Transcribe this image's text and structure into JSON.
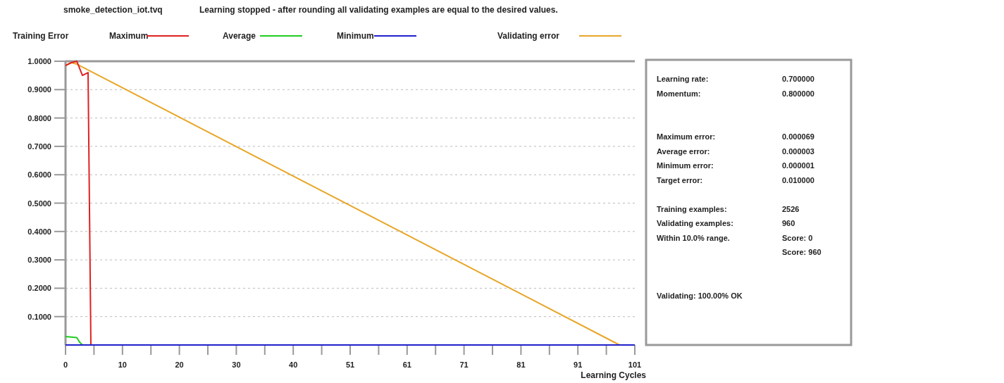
{
  "chart_data": {
    "type": "line",
    "title": "smoke_detection_iot.tvq",
    "subtitle": "Learning stopped - after rounding all validating examples are equal to the desired values.",
    "xlabel": "Learning Cycles",
    "legend_title": "Training Error",
    "legend": "top",
    "grid": "y",
    "marker": "none",
    "line_style": "solid",
    "xlim": [
      0,
      101
    ],
    "xticks": [
      0,
      {
        "value": 5.05,
        "label": null
      },
      {
        "value": 10.1,
        "label": "10"
      },
      {
        "value": 15.15,
        "label": null
      },
      {
        "value": 20.2,
        "label": "20"
      },
      {
        "value": 25.25,
        "label": null
      },
      {
        "value": 30.3,
        "label": "30"
      },
      {
        "value": 35.35,
        "label": null
      },
      {
        "value": 40.4,
        "label": "40"
      },
      {
        "value": 45.45,
        "label": null
      },
      {
        "value": 50.5,
        "label": "51"
      },
      {
        "value": 55.55,
        "label": null
      },
      {
        "value": 60.6,
        "label": "61"
      },
      {
        "value": 65.65,
        "label": null
      },
      {
        "value": 70.7,
        "label": "71"
      },
      {
        "value": 75.75,
        "label": null
      },
      {
        "value": 80.8,
        "label": "81"
      },
      {
        "value": 85.85,
        "label": null
      },
      {
        "value": 90.9,
        "label": "91"
      },
      {
        "value": 95.95,
        "label": null
      },
      101
    ],
    "ylim": [
      0,
      1
    ],
    "yticks": [
      {
        "value": 0.1,
        "label": "0.1000"
      },
      {
        "value": 0.2,
        "label": "0.2000"
      },
      {
        "value": 0.3,
        "label": "0.3000"
      },
      {
        "value": 0.4,
        "label": "0.4000"
      },
      {
        "value": 0.5,
        "label": "0.5000"
      },
      {
        "value": 0.6,
        "label": "0.6000"
      },
      {
        "value": 0.7,
        "label": "0.7000"
      },
      {
        "value": 0.8,
        "label": "0.8000"
      },
      {
        "value": 0.9,
        "label": "0.9000"
      },
      {
        "value": 1,
        "label": "1.0000"
      }
    ],
    "series": [
      {
        "name": "Validating error",
        "color": "#e8a628",
        "x": [
          0,
          1,
          2,
          98.3,
          101
        ],
        "values": [
          0.985,
          0.995,
          0.99,
          0,
          0
        ]
      },
      {
        "name": "Maximum",
        "color": "#e02020",
        "x": [
          0,
          1,
          2,
          3,
          4,
          4.5
        ],
        "values": [
          0.985,
          0.995,
          1,
          0.95,
          0.96,
          0
        ]
      },
      {
        "name": "Average",
        "color": "#22cc22",
        "x": [
          0,
          1,
          2,
          2.5,
          3
        ],
        "values": [
          0.03,
          0.028,
          0.026,
          0.01,
          0
        ]
      },
      {
        "name": "Minimum",
        "color": "#2020cc",
        "x": [
          0,
          101
        ],
        "values": [
          0,
          0
        ]
      }
    ],
    "annotations": [
      "Learning rate:",
      "0.700000",
      "Momentum:",
      "0.800000",
      "Maximum error:",
      "0.000069",
      "Average error:",
      "0.000003",
      "Minimum error:",
      "0.000001",
      "Target error:",
      "0.010000",
      "Training examples:",
      "2526",
      "Validating examples:",
      "960",
      "Within 10.0% range.",
      "Score: 0",
      "Score: 960",
      "Validating: 100.00% OK"
    ]
  }
}
